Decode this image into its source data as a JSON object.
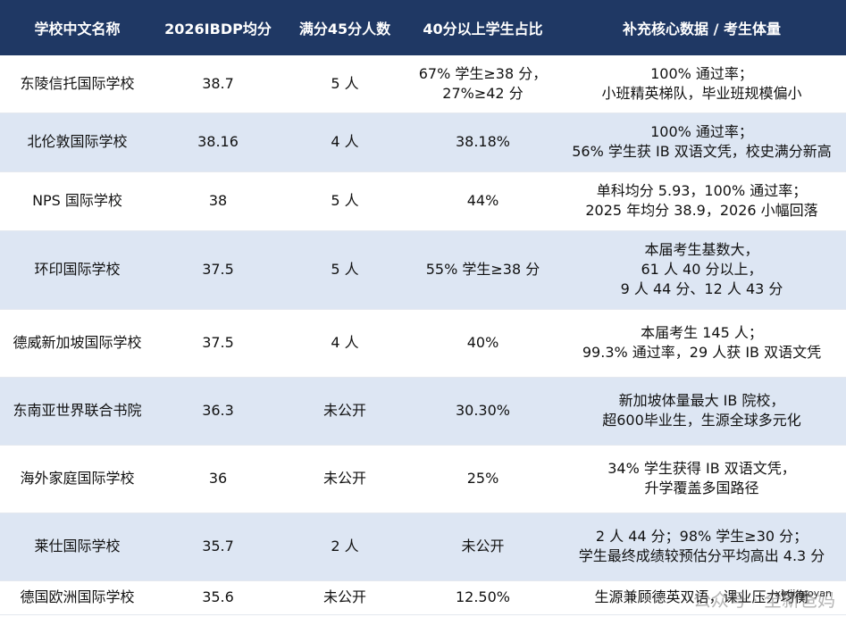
{
  "table": {
    "headers": [
      "学校中文名称",
      "2026IBDP均分",
      "满分45分人数",
      "40分以上学生占比",
      "补充核心数据 / 考生体量"
    ],
    "rows": [
      {
        "name": "东陵信托国际学校",
        "avg": "38.7",
        "full": "5 人",
        "over40": [
          "67% 学生≥38 分，",
          "27%≥42 分"
        ],
        "notes": [
          "100% 通过率；",
          "小班精英梯队，毕业班规模偏小"
        ]
      },
      {
        "name": "北伦敦国际学校",
        "avg": "38.16",
        "full": "4 人",
        "over40": [
          "38.18%"
        ],
        "notes": [
          "100% 通过率；",
          "56% 学生获 IB 双语文凭，校史满分新高"
        ]
      },
      {
        "name": "NPS 国际学校",
        "avg": "38",
        "full": "5 人",
        "over40": [
          "44%"
        ],
        "notes": [
          "单科均分 5.93，100% 通过率；",
          "2025 年均分 38.9，2026 小幅回落"
        ]
      },
      {
        "name": "环印国际学校",
        "avg": "37.5",
        "full": "5 人",
        "over40": [
          "55% 学生≥38 分"
        ],
        "notes": [
          "本届考生基数大，",
          "61 人 40 分以上，",
          "9 人 44 分、12 人 43 分"
        ]
      },
      {
        "name": "德威新加坡国际学校",
        "avg": "37.5",
        "full": "4 人",
        "over40": [
          "40%"
        ],
        "notes": [
          "本届考生 145 人；",
          "99.3% 通过率，29 人获 IB 双语文凭"
        ]
      },
      {
        "name": "东南亚世界联合书院",
        "avg": "36.3",
        "full": "未公开",
        "over40": [
          "30.30%"
        ],
        "notes": [
          "新加坡体量最大 IB 院校，",
          "超600毕业生，生源全球多元化"
        ]
      },
      {
        "name": "海外家庭国际学校",
        "avg": "36",
        "full": "未公开",
        "over40": [
          "25%"
        ],
        "notes": [
          "34% 学生获得 IB 双语文凭，",
          "升学覆盖多国路径"
        ]
      },
      {
        "name": "莱仕国际学校",
        "avg": "35.7",
        "full": "2 人",
        "over40": [
          "未公开"
        ],
        "notes": [
          "2 人 44 分；98% 学生≥30 分；",
          "学生最终成绩较预估分平均高出 4.3 分"
        ]
      },
      {
        "name": "德国欧洲国际学校",
        "avg": "35.6",
        "full": "未公开",
        "over40": [
          "12.50%"
        ],
        "notes": [
          "生源兼顾德英双语，课业压力均衡"
        ]
      }
    ]
  },
  "watermark": {
    "text": "公众号 · 全新爸妈",
    "handle": "xinjiapoyan"
  }
}
